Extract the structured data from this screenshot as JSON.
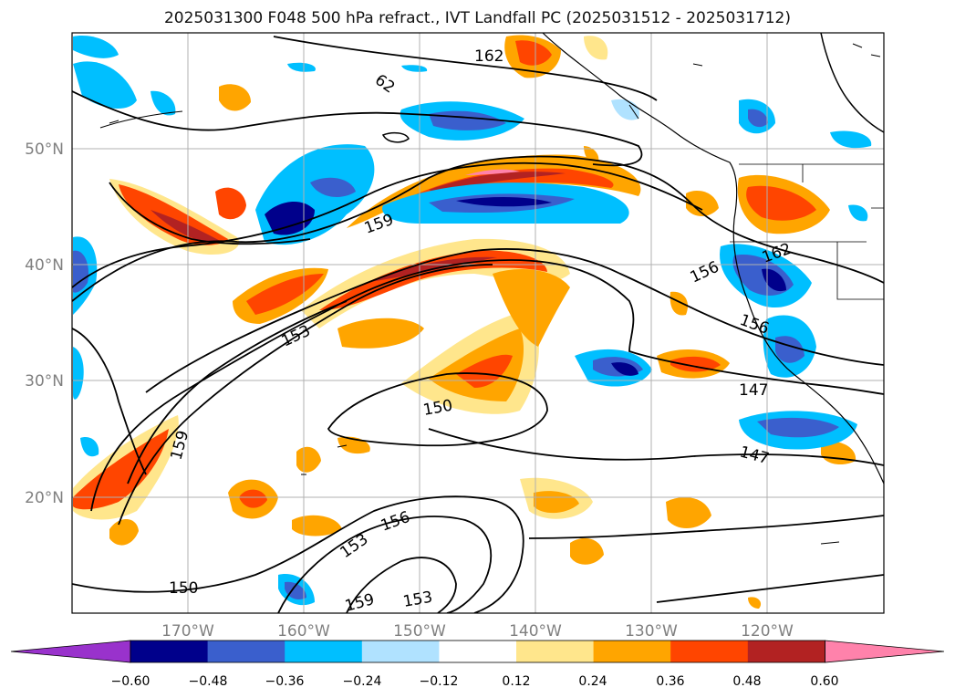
{
  "title": "2025031300 F048 500 hPa refract., IVT Landfall PC (2025031512 - 2025031712)",
  "lat_labels": [
    "50°N",
    "40°N",
    "30°N",
    "20°N"
  ],
  "lon_labels": [
    "170°W",
    "160°W",
    "150°W",
    "140°W",
    "130°W",
    "120°W"
  ],
  "contour_labels": [
    "162",
    "62",
    "159",
    "156",
    "162",
    "153",
    "156",
    "150",
    "159",
    "147",
    "156",
    "153",
    "150",
    "159",
    "153",
    "147"
  ],
  "colorbar": {
    "ticks": [
      "−0.60",
      "−0.48",
      "−0.36",
      "−0.24",
      "−0.12",
      "0.12",
      "0.24",
      "0.36",
      "0.48",
      "0.60"
    ],
    "colors": [
      "#9932cc",
      "#00008b",
      "#3a5fcd",
      "#00bfff",
      "#b0e2ff",
      "#ffffff",
      "#ffe68c",
      "#ffa500",
      "#ff4500",
      "#b22222",
      "#ff82ab"
    ]
  }
}
